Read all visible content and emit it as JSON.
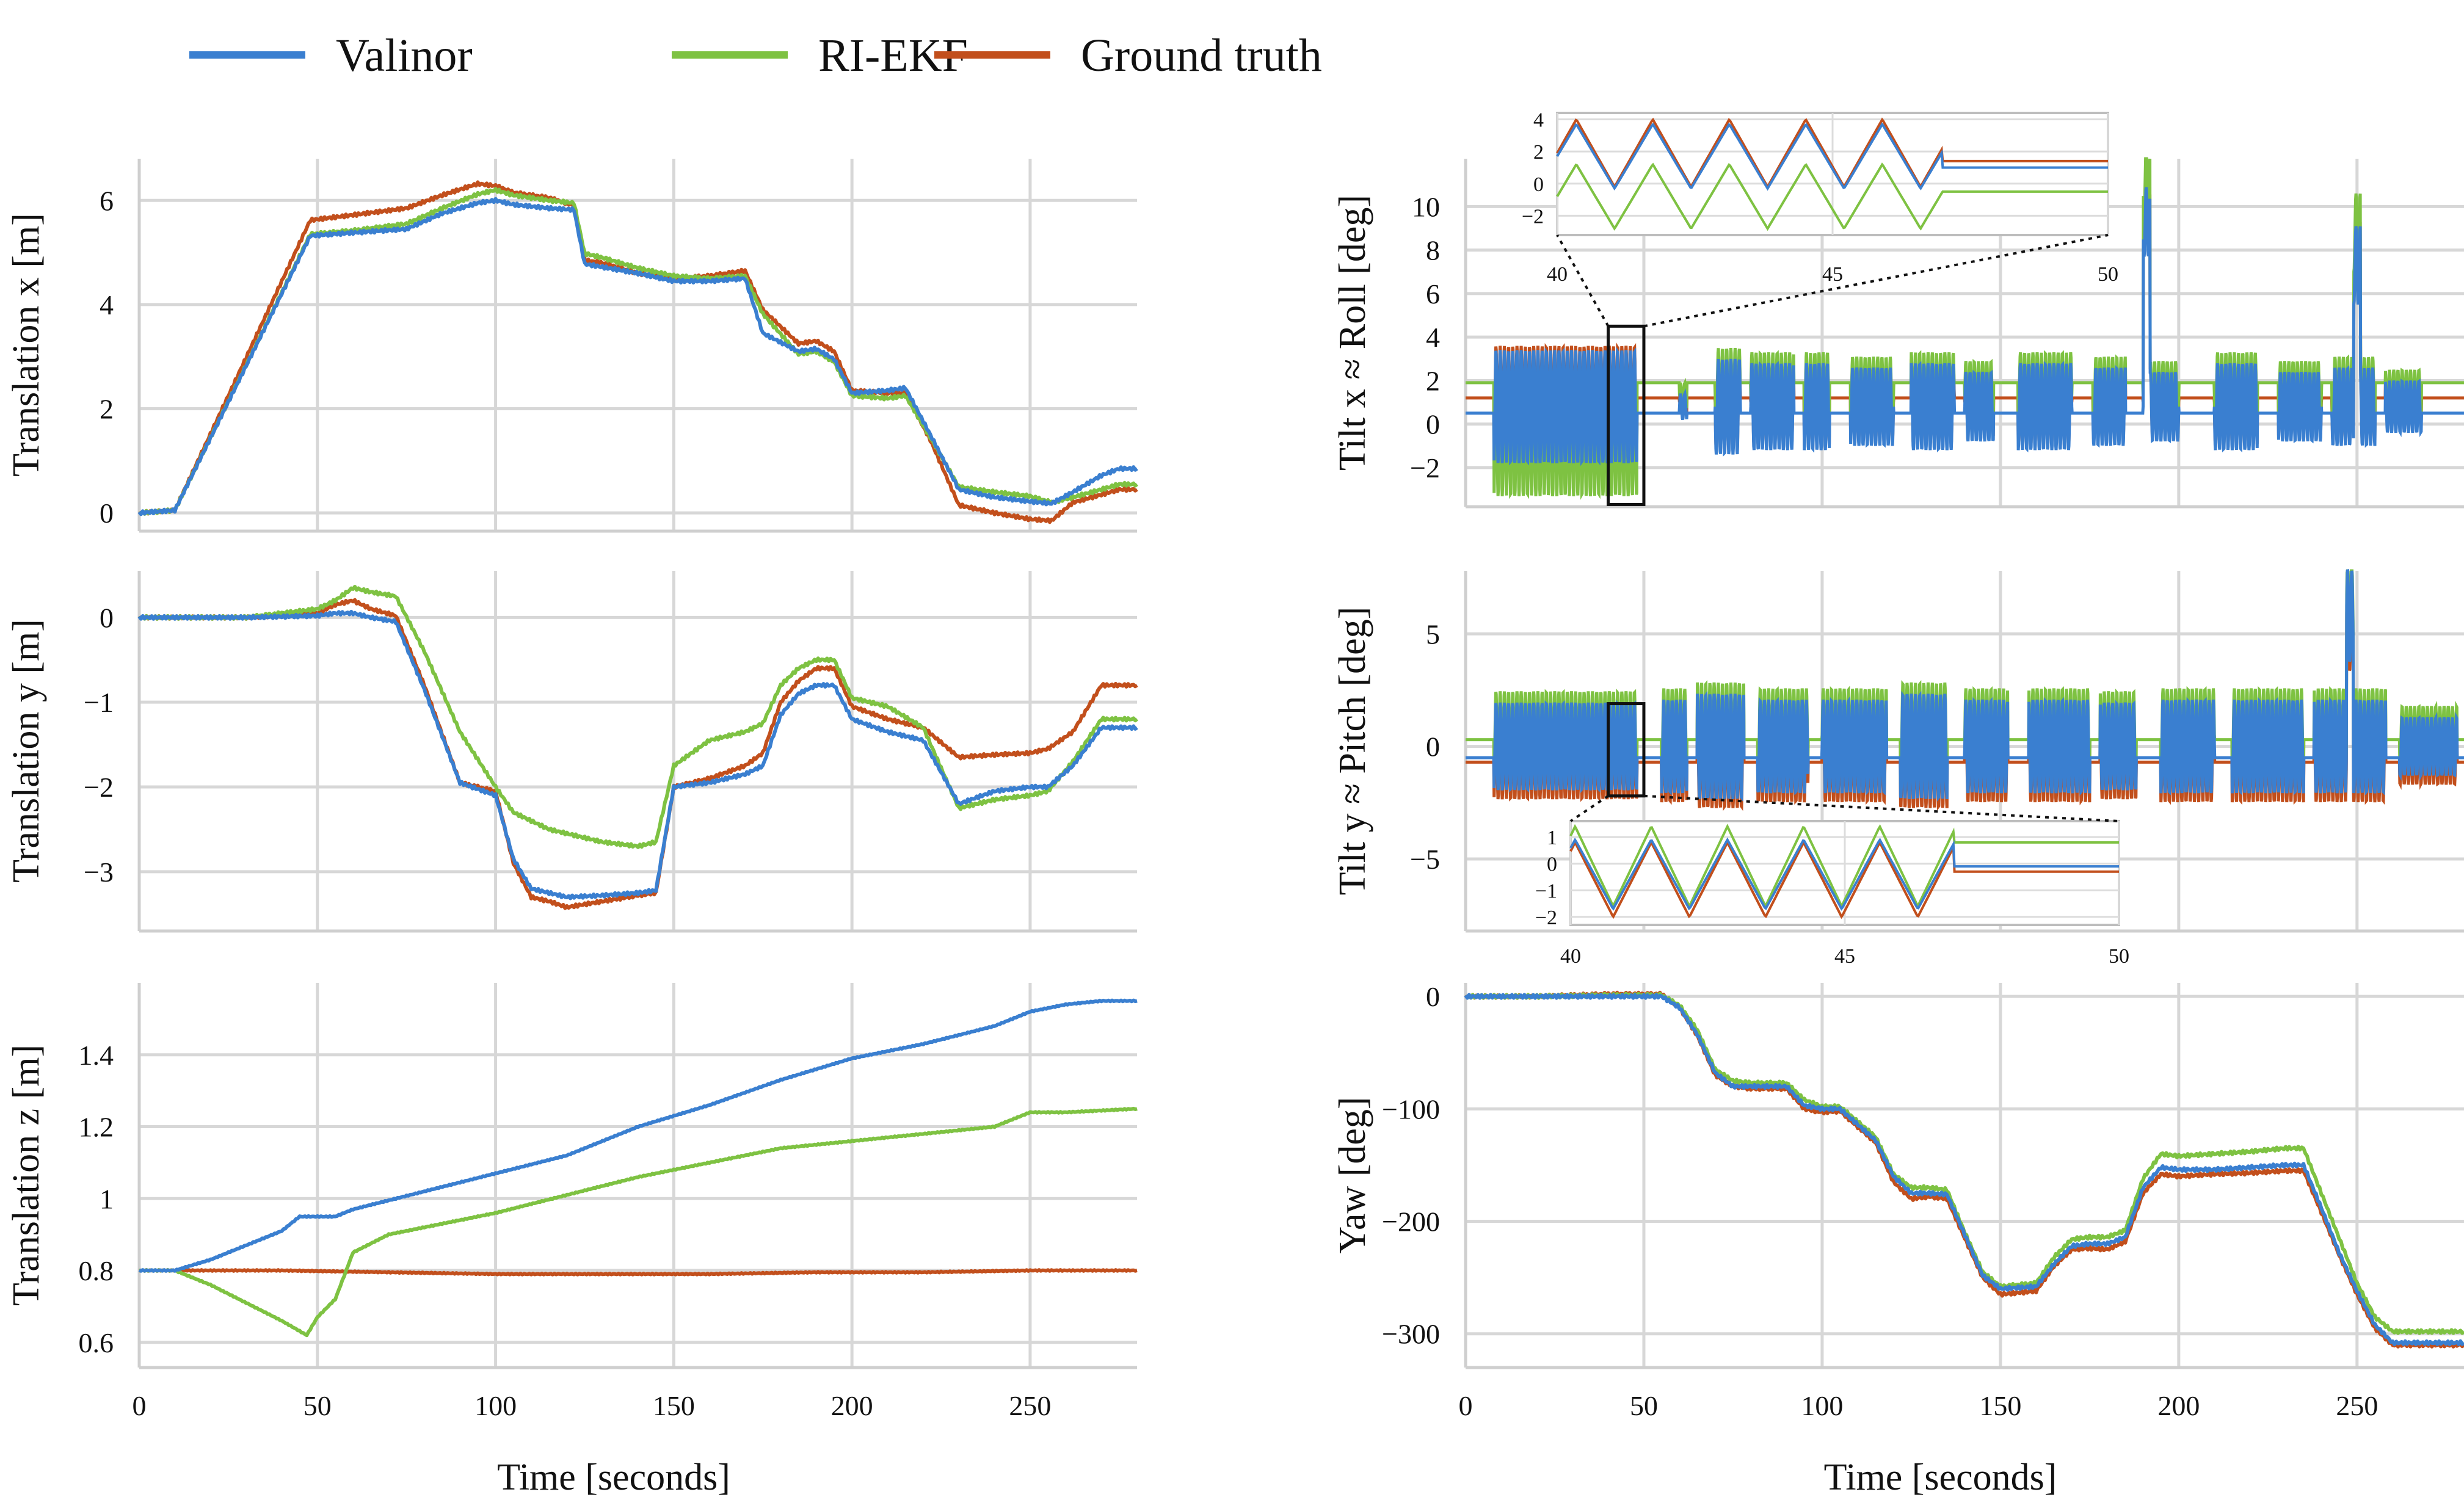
{
  "legend": {
    "placement": "top-left",
    "entries": [
      {
        "name": "Valinor",
        "color": "#3a7fd0"
      },
      {
        "name": "RI-EKF",
        "color": "#7ec242"
      },
      {
        "name": "Ground truth",
        "color": "#c24f1c"
      }
    ]
  },
  "chart_data": [
    {
      "id": "tx",
      "type": "line",
      "ylabel": "Translation x [m]",
      "xlabel": "",
      "xlim": [
        0,
        280
      ],
      "ylim": [
        -0.35,
        6.8
      ],
      "xticks": [
        0,
        50,
        100,
        150,
        200,
        250
      ],
      "xticklabels": [
        "",
        "",
        "",
        "",
        "",
        ""
      ],
      "yticks": [
        0,
        2,
        4,
        6
      ],
      "yticklabels": [
        "0",
        "2",
        "4",
        "6"
      ],
      "grid": true,
      "series": [
        {
          "name": "Ground truth",
          "x": [
            0,
            10,
            48,
            60,
            75,
            85,
            95,
            100,
            105,
            115,
            122,
            125,
            130,
            140,
            150,
            160,
            170,
            175,
            185,
            190,
            195,
            200,
            210,
            215,
            222,
            230,
            240,
            250,
            256,
            262,
            270,
            275,
            280
          ],
          "y": [
            0,
            0.05,
            5.62,
            5.72,
            5.85,
            6.1,
            6.32,
            6.28,
            6.15,
            6.05,
            5.9,
            4.85,
            4.8,
            4.6,
            4.5,
            4.55,
            4.65,
            3.9,
            3.25,
            3.3,
            3.1,
            2.35,
            2.3,
            2.3,
            1.4,
            0.15,
            0.0,
            -0.12,
            -0.15,
            0.2,
            0.35,
            0.45,
            0.45
          ]
        },
        {
          "name": "RI-EKF",
          "x": [
            0,
            10,
            48,
            60,
            75,
            85,
            95,
            100,
            105,
            115,
            122,
            125,
            130,
            140,
            150,
            160,
            170,
            175,
            185,
            190,
            195,
            200,
            210,
            215,
            222,
            230,
            240,
            250,
            256,
            262,
            270,
            275,
            280
          ],
          "y": [
            0,
            0.05,
            5.35,
            5.42,
            5.55,
            5.85,
            6.12,
            6.2,
            6.1,
            6.0,
            5.95,
            4.98,
            4.9,
            4.7,
            4.55,
            4.5,
            4.55,
            3.82,
            3.05,
            3.1,
            2.9,
            2.25,
            2.2,
            2.25,
            1.45,
            0.5,
            0.4,
            0.32,
            0.2,
            0.3,
            0.45,
            0.55,
            0.55
          ]
        },
        {
          "name": "Valinor",
          "x": [
            0,
            10,
            48,
            60,
            75,
            85,
            95,
            100,
            105,
            115,
            122,
            125,
            130,
            140,
            150,
            160,
            170,
            175,
            185,
            190,
            195,
            200,
            210,
            215,
            222,
            230,
            240,
            250,
            256,
            262,
            270,
            275,
            280
          ],
          "y": [
            0,
            0.05,
            5.32,
            5.38,
            5.45,
            5.75,
            5.95,
            6.0,
            5.92,
            5.85,
            5.82,
            4.78,
            4.72,
            4.6,
            4.45,
            4.45,
            4.5,
            3.45,
            3.1,
            3.15,
            2.95,
            2.3,
            2.35,
            2.4,
            1.5,
            0.45,
            0.3,
            0.22,
            0.18,
            0.4,
            0.72,
            0.85,
            0.85
          ]
        }
      ]
    },
    {
      "id": "ty",
      "type": "line",
      "ylabel": "Translation y [m]",
      "xlabel": "",
      "xlim": [
        0,
        280
      ],
      "ylim": [
        -3.7,
        0.55
      ],
      "xticks": [
        0,
        50,
        100,
        150,
        200,
        250
      ],
      "xticklabels": [
        "",
        "",
        "",
        "",
        "",
        ""
      ],
      "yticks": [
        0,
        -1,
        -2,
        -3
      ],
      "yticklabels": [
        "0",
        "−1",
        "−2",
        "−3"
      ],
      "grid": true,
      "series": [
        {
          "name": "Ground truth",
          "x": [
            0,
            10,
            30,
            50,
            55,
            60,
            65,
            72,
            80,
            90,
            100,
            105,
            110,
            115,
            120,
            130,
            140,
            145,
            150,
            160,
            170,
            175,
            180,
            185,
            190,
            195,
            200,
            210,
            220,
            230,
            240,
            250,
            255,
            262,
            270,
            280
          ],
          "y": [
            0,
            0,
            0,
            0.05,
            0.15,
            0.2,
            0.1,
            0.02,
            -0.8,
            -1.95,
            -2.05,
            -2.9,
            -3.3,
            -3.35,
            -3.42,
            -3.35,
            -3.28,
            -3.25,
            -2.0,
            -1.9,
            -1.75,
            -1.6,
            -1.0,
            -0.75,
            -0.6,
            -0.6,
            -1.05,
            -1.2,
            -1.3,
            -1.65,
            -1.62,
            -1.6,
            -1.55,
            -1.35,
            -0.8,
            -0.8
          ]
        },
        {
          "name": "RI-EKF",
          "x": [
            0,
            10,
            30,
            50,
            55,
            60,
            65,
            72,
            80,
            90,
            100,
            105,
            110,
            115,
            120,
            130,
            140,
            145,
            150,
            160,
            170,
            175,
            180,
            185,
            190,
            195,
            200,
            210,
            220,
            230,
            240,
            250,
            255,
            262,
            270,
            280
          ],
          "y": [
            0,
            0,
            0,
            0.1,
            0.2,
            0.35,
            0.3,
            0.25,
            -0.4,
            -1.35,
            -2.0,
            -2.3,
            -2.4,
            -2.5,
            -2.55,
            -2.65,
            -2.7,
            -2.65,
            -1.75,
            -1.45,
            -1.35,
            -1.25,
            -0.8,
            -0.6,
            -0.5,
            -0.5,
            -0.95,
            -1.05,
            -1.3,
            -2.25,
            -2.15,
            -2.1,
            -2.05,
            -1.7,
            -1.2,
            -1.2
          ]
        },
        {
          "name": "Valinor",
          "x": [
            0,
            10,
            30,
            50,
            55,
            60,
            65,
            72,
            80,
            90,
            100,
            105,
            110,
            115,
            120,
            130,
            140,
            145,
            150,
            160,
            170,
            175,
            180,
            185,
            190,
            195,
            200,
            210,
            220,
            230,
            240,
            250,
            255,
            262,
            270,
            280
          ],
          "y": [
            0,
            0,
            0,
            0.02,
            0.05,
            0.05,
            0.0,
            -0.05,
            -0.85,
            -1.95,
            -2.1,
            -2.85,
            -3.2,
            -3.25,
            -3.3,
            -3.28,
            -3.25,
            -3.22,
            -2.0,
            -1.95,
            -1.85,
            -1.75,
            -1.15,
            -0.9,
            -0.8,
            -0.8,
            -1.2,
            -1.35,
            -1.45,
            -2.2,
            -2.05,
            -2.0,
            -2.0,
            -1.75,
            -1.3,
            -1.3
          ]
        }
      ]
    },
    {
      "id": "tz",
      "type": "line",
      "ylabel": "Translation z [m]",
      "xlabel": "Time [seconds]",
      "xlim": [
        0,
        280
      ],
      "ylim": [
        0.53,
        1.6
      ],
      "xticks": [
        0,
        50,
        100,
        150,
        200,
        250
      ],
      "xticklabels": [
        "0",
        "50",
        "100",
        "150",
        "200",
        "250"
      ],
      "yticks": [
        0.6,
        0.8,
        1,
        1.2,
        1.4
      ],
      "yticklabels": [
        "0.6",
        "0.8",
        "1",
        "1.2",
        "1.4"
      ],
      "grid": true,
      "series": [
        {
          "name": "Ground truth",
          "x": [
            0,
            10,
            40,
            70,
            100,
            130,
            160,
            190,
            220,
            250,
            280
          ],
          "y": [
            0.8,
            0.8,
            0.8,
            0.795,
            0.79,
            0.79,
            0.79,
            0.795,
            0.795,
            0.8,
            0.8
          ]
        },
        {
          "name": "RI-EKF",
          "x": [
            0,
            10,
            20,
            30,
            40,
            47,
            50,
            55,
            60,
            70,
            80,
            100,
            120,
            140,
            160,
            180,
            200,
            220,
            240,
            250,
            260,
            280
          ],
          "y": [
            0.8,
            0.8,
            0.76,
            0.71,
            0.66,
            0.62,
            0.67,
            0.72,
            0.85,
            0.9,
            0.92,
            0.96,
            1.01,
            1.06,
            1.1,
            1.14,
            1.16,
            1.18,
            1.2,
            1.24,
            1.24,
            1.25
          ]
        },
        {
          "name": "Valinor",
          "x": [
            0,
            10,
            20,
            30,
            40,
            45,
            55,
            60,
            80,
            100,
            120,
            140,
            160,
            180,
            200,
            220,
            240,
            250,
            260,
            270,
            280
          ],
          "y": [
            0.8,
            0.8,
            0.83,
            0.87,
            0.91,
            0.95,
            0.95,
            0.97,
            1.02,
            1.07,
            1.12,
            1.2,
            1.26,
            1.33,
            1.39,
            1.43,
            1.48,
            1.52,
            1.54,
            1.55,
            1.55
          ]
        }
      ]
    },
    {
      "id": "roll",
      "type": "line",
      "ylabel": "Tilt x ≈ Roll [deg]",
      "xlabel": "",
      "xlim": [
        0,
        280
      ],
      "ylim": [
        -3.8,
        12.2
      ],
      "xticks": [
        0,
        50,
        100,
        150,
        200,
        250
      ],
      "xticklabels": [
        "",
        "",
        "",
        "",
        "",
        ""
      ],
      "yticks": [
        -2,
        0,
        2,
        4,
        6,
        8,
        10
      ],
      "yticklabels": [
        "−2",
        "0",
        "2",
        "4",
        "6",
        "8",
        "10"
      ],
      "grid": true,
      "inset": {
        "xlim": [
          40,
          50
        ],
        "ylim": [
          -3.2,
          4.4
        ],
        "xticks": [
          40,
          45,
          50
        ],
        "xticklabels": [
          "40",
          "45",
          "50"
        ],
        "yticks": [
          -2,
          0,
          2,
          4
        ],
        "yticklabels": [
          "−2",
          "0",
          "2",
          "4"
        ],
        "zoom_box": {
          "x": [
            40,
            50
          ],
          "y": [
            -3.7,
            4.5
          ]
        }
      }
    },
    {
      "id": "pitch",
      "type": "line",
      "ylabel": "Tilt y ≈ Pitch [deg]",
      "xlabel": "",
      "xlim": [
        0,
        280
      ],
      "ylim": [
        -8.2,
        7.8
      ],
      "xticks": [
        0,
        50,
        100,
        150,
        200,
        250
      ],
      "xticklabels": [
        "",
        "",
        "",
        "",
        "",
        ""
      ],
      "yticks": [
        -5,
        0,
        5
      ],
      "yticklabels": [
        "−5",
        "0",
        "5"
      ],
      "grid": true,
      "inset": {
        "xlim": [
          40,
          50
        ],
        "ylim": [
          -2.3,
          1.6
        ],
        "xticks": [
          40,
          45,
          50
        ],
        "xticklabels": [
          "40",
          "45",
          "50"
        ],
        "yticks": [
          -2,
          -1,
          0,
          1
        ],
        "yticklabels": [
          "−2",
          "−1",
          "0",
          "1"
        ],
        "zoom_box": {
          "x": [
            40,
            50
          ],
          "y": [
            -2.2,
            1.9
          ]
        }
      }
    },
    {
      "id": "yaw",
      "type": "line",
      "ylabel": "Yaw [deg]",
      "xlabel": "Time [seconds]",
      "xlim": [
        0,
        280
      ],
      "ylim": [
        -330,
        12
      ],
      "xticks": [
        0,
        50,
        100,
        150,
        200,
        250
      ],
      "xticklabels": [
        "0",
        "50",
        "100",
        "150",
        "200",
        "250"
      ],
      "yticks": [
        0,
        -100,
        -200,
        -300
      ],
      "yticklabels": [
        "0",
        "−100",
        "−200",
        "−300"
      ],
      "grid": true,
      "series": [
        {
          "name": "Ground truth",
          "x": [
            0,
            20,
            40,
            55,
            60,
            65,
            70,
            75,
            80,
            90,
            95,
            100,
            105,
            115,
            120,
            125,
            130,
            135,
            140,
            145,
            150,
            160,
            165,
            170,
            175,
            180,
            185,
            190,
            195,
            200,
            210,
            220,
            230,
            235,
            240,
            245,
            250,
            255,
            260,
            270,
            280
          ],
          "y": [
            0,
            0,
            2,
            2,
            -10,
            -35,
            -70,
            -80,
            -82,
            -82,
            -100,
            -103,
            -102,
            -130,
            -165,
            -180,
            -178,
            -180,
            -215,
            -250,
            -265,
            -262,
            -240,
            -225,
            -224,
            -225,
            -218,
            -175,
            -158,
            -160,
            -158,
            -157,
            -155,
            -155,
            -192,
            -230,
            -265,
            -295,
            -310,
            -310,
            -310
          ]
        },
        {
          "name": "RI-EKF",
          "x": [
            0,
            20,
            40,
            55,
            60,
            65,
            70,
            75,
            80,
            90,
            95,
            100,
            105,
            115,
            120,
            125,
            130,
            135,
            140,
            145,
            150,
            160,
            165,
            170,
            175,
            180,
            185,
            190,
            195,
            200,
            210,
            220,
            230,
            235,
            240,
            245,
            250,
            255,
            260,
            270,
            280
          ],
          "y": [
            0,
            0,
            1,
            1,
            -8,
            -30,
            -65,
            -75,
            -77,
            -77,
            -92,
            -98,
            -98,
            -125,
            -158,
            -170,
            -170,
            -172,
            -210,
            -245,
            -258,
            -255,
            -232,
            -216,
            -214,
            -214,
            -208,
            -162,
            -140,
            -142,
            -140,
            -138,
            -135,
            -135,
            -175,
            -215,
            -255,
            -285,
            -298,
            -298,
            -298
          ]
        },
        {
          "name": "Valinor",
          "x": [
            0,
            20,
            40,
            55,
            60,
            65,
            70,
            75,
            80,
            90,
            95,
            100,
            105,
            115,
            120,
            125,
            130,
            135,
            140,
            145,
            150,
            160,
            165,
            170,
            175,
            180,
            185,
            190,
            195,
            200,
            210,
            220,
            230,
            235,
            240,
            245,
            250,
            255,
            260,
            270,
            280
          ],
          "y": [
            0,
            0,
            0,
            0,
            -10,
            -34,
            -68,
            -80,
            -80,
            -80,
            -97,
            -100,
            -100,
            -128,
            -160,
            -175,
            -175,
            -176,
            -212,
            -248,
            -260,
            -258,
            -238,
            -222,
            -220,
            -220,
            -214,
            -170,
            -152,
            -154,
            -154,
            -152,
            -150,
            -150,
            -188,
            -228,
            -262,
            -292,
            -308,
            -308,
            -308
          ]
        }
      ]
    }
  ]
}
